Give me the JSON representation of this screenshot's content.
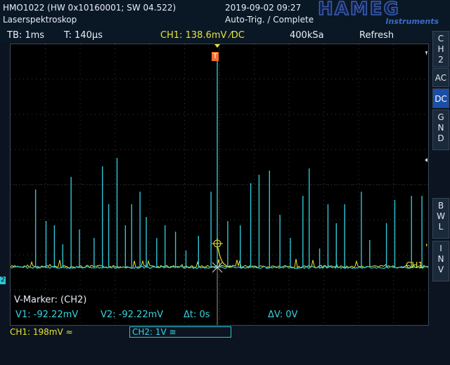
{
  "header": {
    "device": "HMO1022 (HW 0x10160001; SW 04.522)",
    "title": "Laserspektroskop",
    "datetime": "2019-09-02 09:27",
    "trigger_status": "Auto-Trig. / Complete",
    "logo_word": "HAMEG",
    "logo_sub": "Instruments"
  },
  "infobar": {
    "timebase": "TB: 1ms",
    "trigger_time": "T: 140µs",
    "ch1_trigger": "CH1: 138.6mV ⁄DC",
    "sample_rate": "400kSa",
    "mode": "Refresh"
  },
  "side_menu": {
    "channel": "CH2",
    "ac": "AC",
    "dc": "DC",
    "gnd": "GND",
    "bwl": "BWL",
    "inv": "INV"
  },
  "markers": {
    "title": "V-Marker: (CH2)",
    "v1": "V1: -92.22mV",
    "v2": "V2: -92.22mV",
    "dt": "Δt: 0s",
    "dv": "ΔV: 0V",
    "ch1_label": "CH1",
    "trigger_tag": "T",
    "ch2_ref": "2"
  },
  "bottom": {
    "ch1_scale": "CH1: 198mV ≈",
    "ch2_scale": "CH2: 1V ≅"
  },
  "colors": {
    "ch1": "#e8e236",
    "ch2": "#2ec6d6",
    "trigger": "#f07030"
  },
  "trace": {
    "ch2_peaks": [
      {
        "t": 0.06,
        "amp": 0.37
      },
      {
        "t": 0.085,
        "amp": 0.22
      },
      {
        "t": 0.105,
        "amp": 0.2
      },
      {
        "t": 0.125,
        "amp": 0.11
      },
      {
        "t": 0.145,
        "amp": 0.43
      },
      {
        "t": 0.165,
        "amp": 0.18
      },
      {
        "t": 0.2,
        "amp": 0.14
      },
      {
        "t": 0.22,
        "amp": 0.48
      },
      {
        "t": 0.235,
        "amp": 0.3
      },
      {
        "t": 0.255,
        "amp": 0.52
      },
      {
        "t": 0.275,
        "amp": 0.2
      },
      {
        "t": 0.29,
        "amp": 0.3
      },
      {
        "t": 0.31,
        "amp": 0.36
      },
      {
        "t": 0.325,
        "amp": 0.24
      },
      {
        "t": 0.35,
        "amp": 0.14
      },
      {
        "t": 0.37,
        "amp": 0.2
      },
      {
        "t": 0.395,
        "amp": 0.17
      },
      {
        "t": 0.42,
        "amp": 0.08
      },
      {
        "t": 0.45,
        "amp": 0.15
      },
      {
        "t": 0.48,
        "amp": 0.36
      },
      {
        "t": 0.495,
        "amp": 1.0
      },
      {
        "t": 0.52,
        "amp": 0.22
      },
      {
        "t": 0.55,
        "amp": 0.2
      },
      {
        "t": 0.575,
        "amp": 0.4
      },
      {
        "t": 0.595,
        "amp": 0.44
      },
      {
        "t": 0.62,
        "amp": 0.46
      },
      {
        "t": 0.645,
        "amp": 0.25
      },
      {
        "t": 0.67,
        "amp": 0.14
      },
      {
        "t": 0.7,
        "amp": 0.34
      },
      {
        "t": 0.715,
        "amp": 0.47
      },
      {
        "t": 0.74,
        "amp": 0.09
      },
      {
        "t": 0.76,
        "amp": 0.3
      },
      {
        "t": 0.78,
        "amp": 0.21
      },
      {
        "t": 0.8,
        "amp": 0.3
      },
      {
        "t": 0.84,
        "amp": 0.36
      },
      {
        "t": 0.86,
        "amp": 0.13
      },
      {
        "t": 0.9,
        "amp": 0.21
      },
      {
        "t": 0.92,
        "amp": 0.32
      },
      {
        "t": 0.96,
        "amp": 0.34
      },
      {
        "t": 0.985,
        "amp": 0.34
      }
    ]
  }
}
